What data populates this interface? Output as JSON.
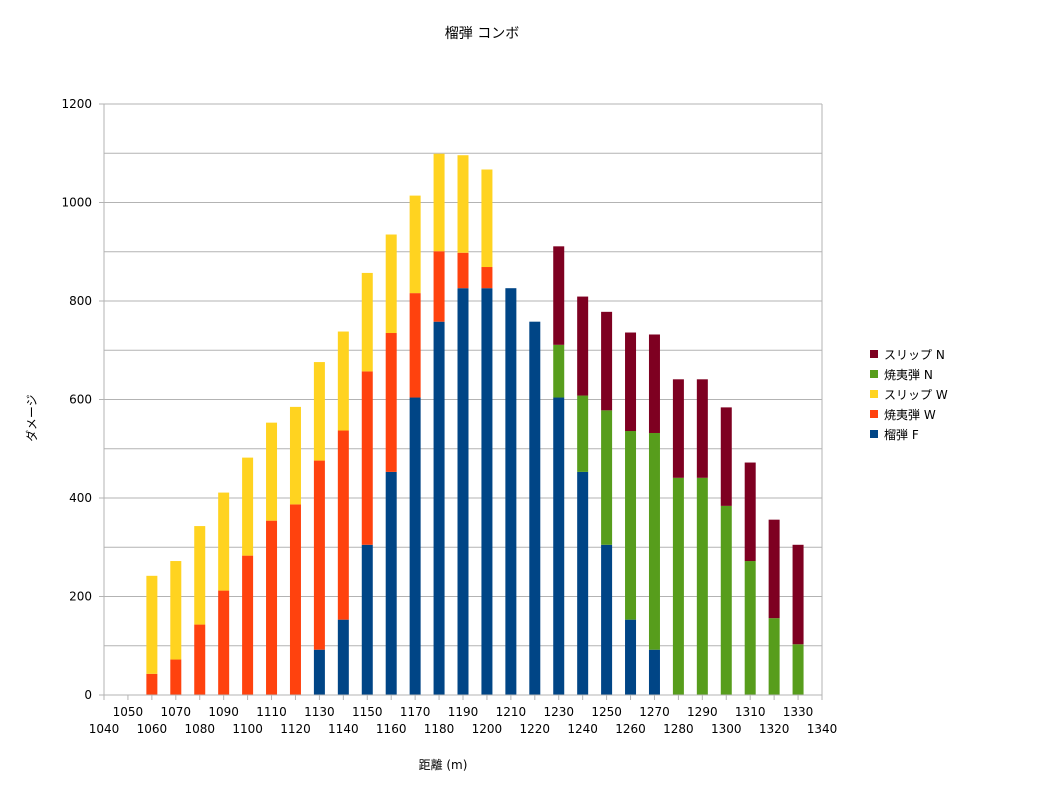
{
  "chart_data": {
    "type": "bar",
    "stacked": true,
    "title": "榴弾 コンボ",
    "xlabel": "距離 (m)",
    "ylabel": "ダメージ",
    "ylim": [
      0,
      1200
    ],
    "yticks": [
      0,
      200,
      400,
      600,
      800,
      1000,
      1200
    ],
    "grid": true,
    "legend_position": "right",
    "categories": [
      1040,
      1050,
      1060,
      1070,
      1080,
      1090,
      1100,
      1110,
      1120,
      1130,
      1140,
      1150,
      1160,
      1170,
      1180,
      1190,
      1200,
      1210,
      1220,
      1230,
      1240,
      1250,
      1260,
      1270,
      1280,
      1290,
      1300,
      1310,
      1320,
      1330,
      1340
    ],
    "series": [
      {
        "name": "榴弾 F",
        "color": "#004586",
        "values": [
          0,
          0,
          0,
          0,
          0,
          0,
          0,
          0,
          0,
          92,
          153,
          305,
          453,
          604,
          758,
          826,
          826,
          826,
          758,
          604,
          453,
          305,
          153,
          92,
          0,
          0,
          0,
          0,
          0,
          0,
          0
        ]
      },
      {
        "name": "焼夷弾 W",
        "color": "#ff420e",
        "values": [
          0,
          0,
          43,
          72,
          143,
          212,
          283,
          354,
          387,
          384,
          384,
          352,
          282,
          212,
          143,
          72,
          43,
          0,
          0,
          0,
          0,
          0,
          0,
          0,
          0,
          0,
          0,
          0,
          0,
          0,
          0
        ]
      },
      {
        "name": "スリップ W",
        "color": "#ffd320",
        "values": [
          0,
          0,
          199,
          200,
          200,
          199,
          199,
          199,
          198,
          200,
          201,
          200,
          200,
          198,
          198,
          198,
          198,
          0,
          0,
          0,
          0,
          0,
          0,
          0,
          0,
          0,
          0,
          0,
          0,
          0,
          0
        ]
      },
      {
        "name": "焼夷弾 N",
        "color": "#579d1c",
        "values": [
          0,
          0,
          0,
          0,
          0,
          0,
          0,
          0,
          0,
          0,
          0,
          0,
          0,
          0,
          0,
          0,
          0,
          0,
          0,
          107,
          155,
          273,
          383,
          440,
          441,
          441,
          384,
          272,
          156,
          103,
          0
        ]
      },
      {
        "name": "スリップ N",
        "color": "#7e0021",
        "values": [
          0,
          0,
          0,
          0,
          0,
          0,
          0,
          0,
          0,
          0,
          0,
          0,
          0,
          0,
          0,
          0,
          0,
          0,
          0,
          200,
          201,
          200,
          200,
          200,
          200,
          200,
          200,
          200,
          200,
          202,
          0
        ]
      }
    ]
  }
}
